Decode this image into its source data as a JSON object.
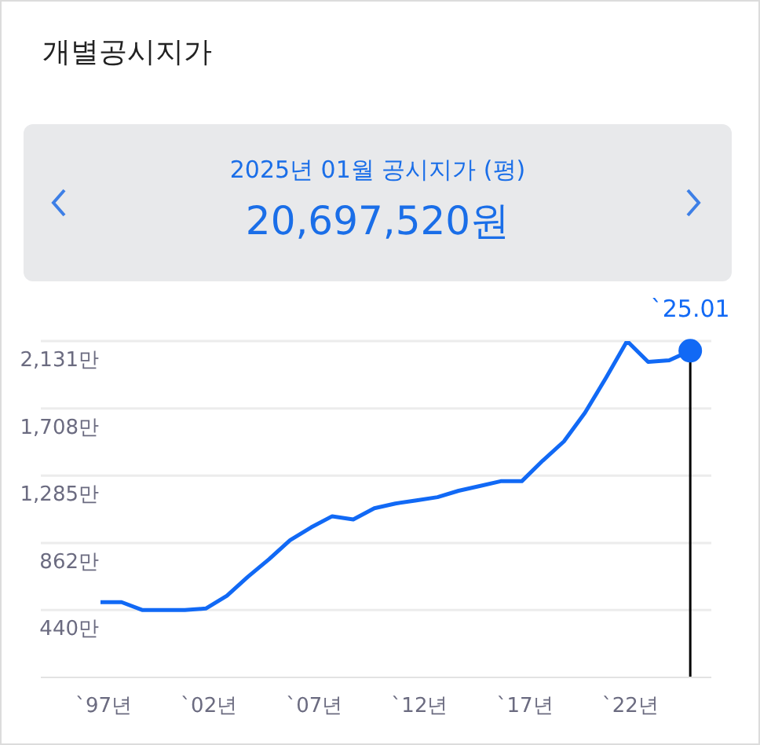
{
  "chart_data": {
    "type": "line",
    "title": "개별공시지가",
    "subtitle": "2025년 01월 공시지가 (평)",
    "annotations": [
      "20,697,520원"
    ],
    "x": [
      "1997",
      "1998",
      "1999",
      "2000",
      "2001",
      "2002",
      "2003",
      "2004",
      "2005",
      "2006",
      "2007",
      "2008",
      "2009",
      "2010",
      "2011",
      "2012",
      "2013",
      "2014",
      "2015",
      "2016",
      "2017",
      "2018",
      "2019",
      "2020",
      "2021",
      "2022",
      "2023",
      "2024",
      "2025-01"
    ],
    "series": [
      {
        "color": "#1169f5",
        "values": [
          490,
          490,
          440,
          440,
          440,
          450,
          530,
          650,
          760,
          880,
          960,
          1030,
          1010,
          1080,
          1110,
          1130,
          1150,
          1190,
          1220,
          1250,
          1250,
          1380,
          1500,
          1680,
          1900,
          2131,
          2000,
          2010,
          2070
        ]
      }
    ],
    "xlim": [
      "1994-03",
      "2026"
    ],
    "xticks": [
      {
        "value": "1997",
        "label": "`97년"
      },
      {
        "value": "2002",
        "label": "`02년"
      },
      {
        "value": "2007",
        "label": "`07년"
      },
      {
        "value": "2012",
        "label": "`12년"
      },
      {
        "value": "2017",
        "label": "`17년"
      },
      {
        "value": "2022",
        "label": "`22년"
      }
    ],
    "ylim": [
      17,
      2131
    ],
    "yticks": [
      {
        "value": 440,
        "label": "440만"
      },
      {
        "value": 862,
        "label": "862만"
      },
      {
        "value": 1285,
        "label": "1,285만"
      },
      {
        "value": 1708,
        "label": "1,708만"
      },
      {
        "value": 2131,
        "label": "2,131만"
      }
    ],
    "ref_lines": [
      {
        "axis": "x",
        "value": "2025-01",
        "label": "`25.01",
        "color": "#000000"
      }
    ],
    "grid": "y",
    "marker": "none",
    "line_style": "solid"
  }
}
